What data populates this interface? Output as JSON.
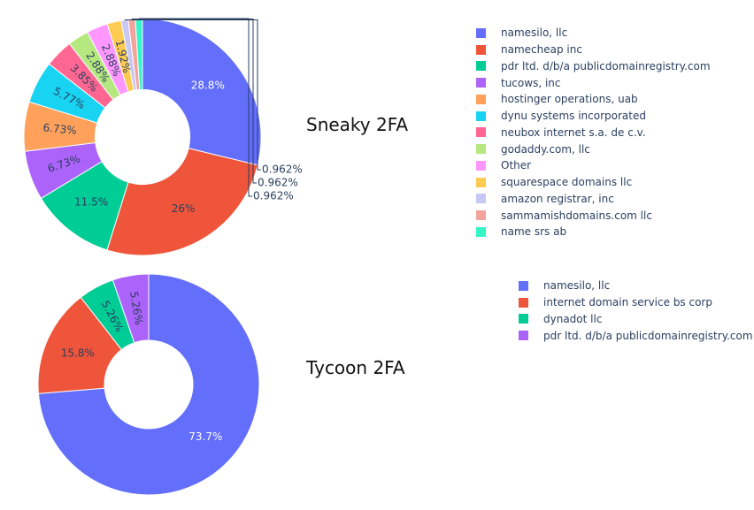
{
  "chart_data": [
    {
      "type": "pie",
      "title": "Sneaky 2FA",
      "hole": 0.4,
      "labels": [
        "namesilo, llc",
        "namecheap inc",
        "pdr ltd. d/b/a publicdomainregistry.com",
        "tucows, inc",
        "hostinger operations, uab",
        "dynu systems incorporated",
        "neubox internet s.a. de c.v.",
        "godaddy.com, llc",
        "Other",
        "squarespace domains llc",
        "amazon registrar, inc",
        "sammamishdomains.com llc",
        "name srs ab"
      ],
      "values": [
        28.8,
        26,
        11.5,
        6.73,
        6.73,
        5.77,
        3.85,
        2.88,
        2.88,
        1.92,
        0.962,
        0.962,
        0.962
      ],
      "text": [
        "28.8%",
        "26%",
        "11.5%",
        "6.73%",
        "6.73%",
        "5.77%",
        "3.85%",
        "2.88%",
        "2.88%",
        "1.92%",
        "0.962%",
        "0.962%",
        "0.962%"
      ],
      "colors": [
        "#636efa",
        "#ef553b",
        "#00cc96",
        "#ab63fa",
        "#ffa15a",
        "#19d3f3",
        "#ff6692",
        "#b6e880",
        "#ff97ff",
        "#fecb52",
        "#c8c8f5",
        "#f2a39b",
        "#33f5c5"
      ]
    },
    {
      "type": "pie",
      "title": "Tycoon 2FA",
      "hole": 0.4,
      "labels": [
        "namesilo, llc",
        "internet domain service bs corp",
        "dynadot llc",
        "pdr ltd. d/b/a publicdomainregistry.com"
      ],
      "values": [
        73.7,
        15.8,
        5.26,
        5.26
      ],
      "text": [
        "73.7%",
        "15.8%",
        "5.26%",
        "5.26%"
      ],
      "colors": [
        "#636efa",
        "#ef553b",
        "#00cc96",
        "#ab63fa"
      ]
    }
  ]
}
